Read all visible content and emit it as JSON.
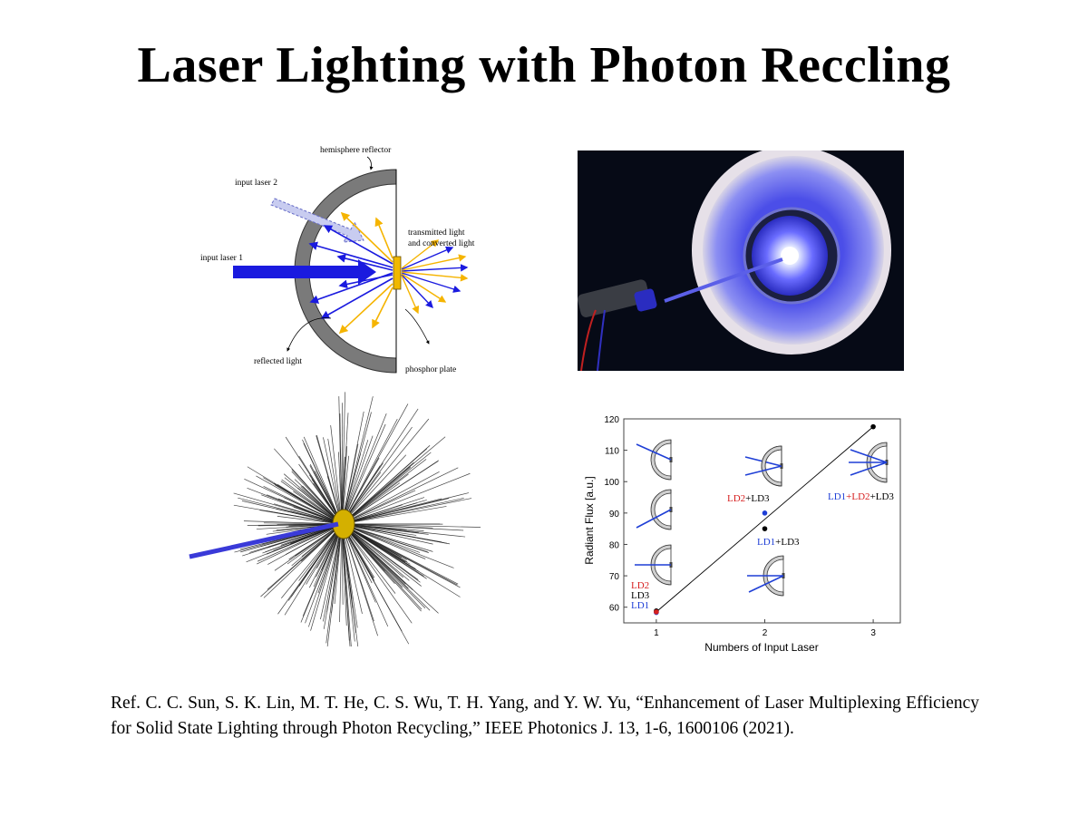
{
  "slide": {
    "title": "Laser Lighting with Photon Reccling",
    "reference": "Ref. C. C. Sun, S. K. Lin, M. T. He, C. S. Wu, T. H. Yang, and Y. W. Yu, “Enhancement of Laser Multiplexing Efficiency for Solid State Lighting through Photon Recycling,” IEEE Photonics J. 13, 1-6, 1600106 (2021)."
  },
  "diagram": {
    "hemisphere_reflector": "hemisphere reflector",
    "input_laser_2": "input laser 2",
    "input_laser_1": "input laser 1",
    "transmitted_light": "transmitted light",
    "converted_light": "and converted light",
    "reflected_light": "reflected light",
    "phosphor_plate": "phosphor plate",
    "colors": {
      "laser": "#1a1adf",
      "converted": "#f5b400",
      "reflector": "#7a7a7a",
      "phosphor": "#f0b800"
    }
  },
  "chart_data": {
    "type": "scatter",
    "xlabel": "Numbers of Input Laser",
    "ylabel": "Radiant Flux [a.u.]",
    "xlim": [
      0.7,
      3.25
    ],
    "ylim": [
      55,
      120
    ],
    "xticks": [
      "1",
      "2",
      "3"
    ],
    "yticks": [
      "60",
      "70",
      "80",
      "90",
      "100",
      "110",
      "120"
    ],
    "series": [
      {
        "color": "#000000",
        "points": [
          [
            1,
            58.8
          ],
          [
            2,
            85
          ],
          [
            3,
            117.5
          ]
        ]
      },
      {
        "color": "#1f3fd6",
        "points": [
          [
            1,
            58.3
          ],
          [
            2,
            90
          ]
        ]
      },
      {
        "color": "#d62020",
        "points": [
          [
            1,
            58.5
          ]
        ]
      }
    ],
    "fit_line": [
      [
        1,
        58.5
      ],
      [
        3,
        117.5
      ]
    ],
    "annotations": {
      "n1_ld2": "LD2",
      "n1_ld3": "LD3",
      "n1_ld1": "LD1",
      "n2a_ld2": "LD2",
      "n2a_rest": "+LD3",
      "n2b_ld1": "LD1",
      "n2b_rest": "+LD3",
      "n3_ld1": "LD1",
      "n3_plus": "+",
      "n3_ld2": "LD2",
      "n3_rest": "+LD3"
    }
  }
}
